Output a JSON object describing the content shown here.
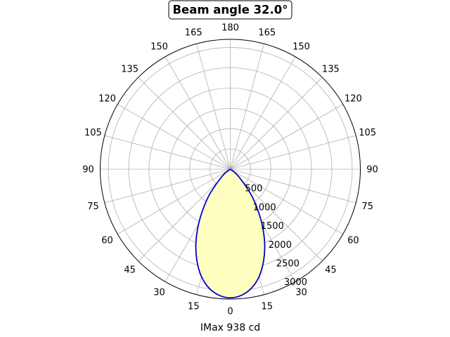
{
  "chart_data": {
    "type": "polar",
    "title": "Beam angle 32.0°",
    "xlabel": "IMax 938 cd",
    "beam_angle_deg": 32.0,
    "imax_cd": 938,
    "angle_tick_labels": [
      "0",
      "15",
      "30",
      "45",
      "60",
      "75",
      "90",
      "105",
      "120",
      "135",
      "150",
      "165",
      "180",
      "165",
      "150",
      "135",
      "120",
      "105",
      "90",
      "75",
      "60",
      "45",
      "30",
      "15"
    ],
    "radial_tick_labels": [
      "500",
      "1000",
      "1500",
      "2000",
      "2500",
      "3000"
    ],
    "radial_ticks": [
      500,
      1000,
      1500,
      2000,
      2500,
      3000
    ],
    "rlim": [
      0,
      3200
    ],
    "grid": true,
    "series": [
      {
        "angles_deg": [
          -60,
          -50,
          -40,
          -35,
          -30,
          -25,
          -20,
          -15,
          -10,
          -5,
          0,
          5,
          10,
          15,
          20,
          25,
          30,
          35,
          40,
          50,
          60
        ],
        "values": [
          0,
          240,
          750,
          1130,
          1560,
          2000,
          2400,
          2740,
          2980,
          3120,
          3170,
          3120,
          2980,
          2740,
          2400,
          2000,
          1560,
          1130,
          750,
          240,
          0
        ],
        "line_color": "#0000cc",
        "fill_color": "#ffffc0"
      }
    ]
  }
}
